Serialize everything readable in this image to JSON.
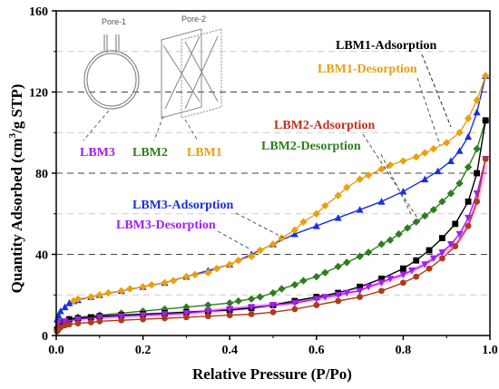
{
  "chart_data": {
    "type": "line",
    "title": "",
    "xlabel": "Relative Pressure (P/Po)",
    "ylabel_main": "Quantity Adsorbed (cm",
    "ylabel_sup": "3",
    "ylabel_end": "/g STP)",
    "xlim": [
      0,
      1
    ],
    "ylim": [
      0,
      160
    ],
    "xticks": [
      0.0,
      0.2,
      0.4,
      0.6,
      0.8,
      1.0
    ],
    "xtick_labels": [
      "0.0",
      "0.2",
      "0.4",
      "0.6",
      "0.8",
      "1.0"
    ],
    "yticks": [
      0,
      40,
      80,
      120,
      160
    ],
    "ytick_labels": [
      "0",
      "40",
      "80",
      "120",
      "160"
    ],
    "grid": "horizontal dashed",
    "series": [
      {
        "name": "LBM1-Adsorption",
        "color": "#000000",
        "marker": "square",
        "x": [
          0.002,
          0.005,
          0.01,
          0.02,
          0.03,
          0.05,
          0.08,
          0.1,
          0.15,
          0.2,
          0.25,
          0.3,
          0.35,
          0.4,
          0.45,
          0.5,
          0.55,
          0.6,
          0.65,
          0.7,
          0.75,
          0.8,
          0.83,
          0.86,
          0.89,
          0.92,
          0.95,
          0.97,
          0.99
        ],
        "y": [
          3,
          5,
          6,
          7,
          8,
          8.5,
          9,
          9.5,
          10,
          10.5,
          11,
          11.5,
          12,
          12.5,
          13.5,
          15,
          17,
          19,
          21,
          24,
          28,
          33,
          37,
          42,
          48,
          55,
          66,
          80,
          106
        ]
      },
      {
        "name": "LBM1-Desorption",
        "color": "#E8A010",
        "marker": "diamond",
        "x": [
          0.99,
          0.97,
          0.95,
          0.93,
          0.9,
          0.87,
          0.85,
          0.83,
          0.8,
          0.77,
          0.75,
          0.72,
          0.7,
          0.67,
          0.65,
          0.62,
          0.6,
          0.57,
          0.55,
          0.52,
          0.5,
          0.47,
          0.45,
          0.42,
          0.4,
          0.37,
          0.35,
          0.32,
          0.3,
          0.27,
          0.25,
          0.22,
          0.2,
          0.17,
          0.15,
          0.12,
          0.1,
          0.08,
          0.05,
          0.04
        ],
        "y": [
          128,
          116,
          107,
          100,
          95,
          92,
          90,
          88,
          86,
          84,
          82,
          79,
          77,
          73,
          69,
          64,
          60,
          56,
          52,
          48,
          45,
          42,
          39,
          37,
          35,
          33,
          31,
          30,
          29,
          27,
          26,
          25,
          24,
          23,
          22,
          21,
          20,
          19,
          18,
          17
        ]
      },
      {
        "name": "LBM2-Adsorption",
        "color": "#B03A1A",
        "marker": "circle",
        "x": [
          0.002,
          0.005,
          0.01,
          0.02,
          0.03,
          0.05,
          0.08,
          0.1,
          0.15,
          0.2,
          0.25,
          0.3,
          0.35,
          0.4,
          0.45,
          0.5,
          0.55,
          0.6,
          0.65,
          0.7,
          0.75,
          0.8,
          0.83,
          0.86,
          0.89,
          0.92,
          0.95,
          0.97,
          0.99
        ],
        "y": [
          2,
          3,
          4,
          5,
          5.5,
          6,
          6.5,
          7,
          7.5,
          8,
          8.5,
          9,
          9.5,
          10,
          10.5,
          11.5,
          13,
          15,
          17,
          19,
          22,
          26,
          29,
          33,
          38,
          44,
          54,
          66,
          87
        ]
      },
      {
        "name": "LBM2-Desorption",
        "color": "#2E7D1E",
        "marker": "diamond",
        "x": [
          0.99,
          0.97,
          0.95,
          0.93,
          0.91,
          0.89,
          0.87,
          0.85,
          0.83,
          0.81,
          0.79,
          0.77,
          0.75,
          0.72,
          0.7,
          0.67,
          0.65,
          0.62,
          0.6,
          0.57,
          0.55,
          0.52,
          0.5,
          0.47,
          0.45,
          0.42,
          0.4,
          0.35,
          0.3,
          0.25,
          0.2,
          0.15,
          0.1,
          0.05,
          0.03,
          0.01
        ],
        "y": [
          106,
          92,
          83,
          75,
          70,
          66,
          62,
          59,
          56,
          53,
          50,
          47,
          45,
          41,
          39,
          36,
          34,
          31,
          29,
          27,
          25,
          23,
          21,
          19,
          18,
          17,
          16,
          15,
          14,
          13,
          12,
          11,
          10,
          9,
          8,
          7
        ]
      },
      {
        "name": "LBM3-Adsorption",
        "color": "#1A2FE0",
        "marker": "triangle",
        "x": [
          0.002,
          0.005,
          0.01,
          0.02,
          0.03,
          0.04,
          0.05,
          0.08,
          0.1,
          0.15,
          0.2,
          0.25,
          0.3,
          0.35,
          0.4,
          0.45,
          0.5,
          0.55,
          0.6,
          0.65,
          0.7,
          0.75,
          0.8,
          0.85,
          0.88,
          0.91,
          0.93,
          0.95,
          0.97,
          0.99
        ],
        "y": [
          8,
          10,
          12,
          14,
          16,
          17,
          17.5,
          19,
          20,
          22,
          24,
          26,
          29,
          32,
          35,
          40,
          45,
          50,
          54,
          58,
          62,
          66,
          71,
          77,
          81,
          86,
          91,
          98,
          110,
          128
        ]
      },
      {
        "name": "LBM3-Desorption",
        "color": "#A020F0",
        "marker": "triangle-down",
        "x": [
          0.99,
          0.97,
          0.95,
          0.93,
          0.91,
          0.89,
          0.87,
          0.85,
          0.82,
          0.8,
          0.77,
          0.75,
          0.72,
          0.7,
          0.67,
          0.65,
          0.62,
          0.6,
          0.55,
          0.5,
          0.45,
          0.4,
          0.35,
          0.3,
          0.25,
          0.2,
          0.15,
          0.1,
          0.05,
          0.02,
          0.005
        ],
        "y": [
          87,
          70,
          58,
          50,
          45,
          41,
          38,
          35,
          32,
          30,
          28,
          26,
          24,
          22,
          21,
          20,
          19,
          18,
          16,
          15,
          14,
          13,
          12,
          11,
          10.5,
          10,
          9.5,
          9,
          8,
          7,
          6
        ]
      },
      {
        "name": "LBM3-Desorption-fill",
        "color": "#FF40FF",
        "marker": "none",
        "x": [
          0.99,
          0.97,
          0.95,
          0.93,
          0.9,
          0.87,
          0.84,
          0.8,
          0.75,
          0.7,
          0.65,
          0.6,
          0.5,
          0.4,
          0.3,
          0.2,
          0.1,
          0.05,
          0.02
        ],
        "y": [
          84,
          66,
          55,
          47,
          42,
          38,
          34,
          30,
          26,
          23,
          20,
          18,
          15,
          13,
          11,
          10,
          9,
          8,
          7
        ]
      }
    ],
    "annotations": [
      {
        "text": "LBM1-Adsorption",
        "color": "#000000"
      },
      {
        "text": "LBM1-Desorption",
        "color": "#E8A010"
      },
      {
        "text": "LBM2-Adsorption",
        "color": "#C03020"
      },
      {
        "text": "LBM2-Desorption",
        "color": "#2E7D1E"
      },
      {
        "text": "LBM3-Adsorption",
        "color": "#1A2FE0"
      },
      {
        "text": "LBM3-Desorption",
        "color": "#A020F0"
      },
      {
        "text": "LBM3",
        "color": "#A020F0"
      },
      {
        "text": "LBM2",
        "color": "#2E7D1E"
      },
      {
        "text": "LBM1",
        "color": "#E8A010"
      }
    ],
    "inset": {
      "pore1_label": "Pore-1",
      "pore2_label": "Pore-2"
    }
  }
}
